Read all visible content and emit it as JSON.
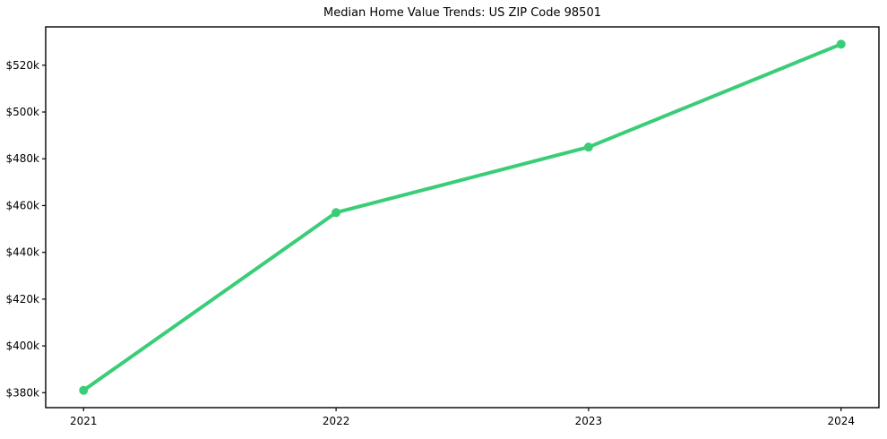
{
  "chart_data": {
    "type": "line",
    "title": "Median Home Value Trends: US ZIP Code 98501",
    "categories": [
      "2021",
      "2022",
      "2023",
      "2024"
    ],
    "x": [
      2021,
      2022,
      2023,
      2024
    ],
    "values": [
      381,
      457,
      485,
      529
    ],
    "values_unit": "$k",
    "y_ticks": [
      380,
      400,
      420,
      440,
      460,
      480,
      500,
      520
    ],
    "y_tick_labels": [
      "$380k",
      "$400k",
      "$420k",
      "$440k",
      "$460k",
      "$480k",
      "$500k",
      "$520k"
    ],
    "xlabel": "",
    "ylabel": "",
    "xlim": [
      2020.85,
      2024.15
    ],
    "ylim": [
      373.6,
      536.4
    ],
    "grid": false,
    "legend": "none",
    "line_color": "#3acd78",
    "marker_color": "#3acd78",
    "axis_color": "#000000",
    "tick_label_color": "#000000",
    "background_color": "#ffffff",
    "line_width": 4,
    "marker_radius": 5,
    "tick_length": 4
  }
}
